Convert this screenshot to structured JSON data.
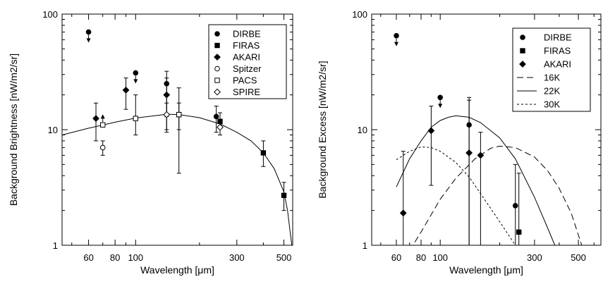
{
  "chart_data": [
    {
      "type": "scatter",
      "xscale": "log",
      "yscale": "log",
      "xlim": [
        45,
        550
      ],
      "ylim": [
        1,
        100
      ],
      "xlabel": "Wavelength [μm]",
      "ylabel": "Background Brightness [nW/m2/sr]",
      "xticks": [
        60,
        80,
        100,
        300,
        500
      ],
      "xtick_labels": [
        "60",
        "80",
        "100",
        "300",
        "500"
      ],
      "yticks": [
        1,
        10,
        100
      ],
      "ytick_labels": [
        "1",
        "10",
        "100"
      ],
      "legend": [
        {
          "label": "DIRBE",
          "marker": "circle-filled"
        },
        {
          "label": "FIRAS",
          "marker": "square-filled"
        },
        {
          "label": "AKARI",
          "marker": "diamond-filled"
        },
        {
          "label": "Spitzer",
          "marker": "circle-open"
        },
        {
          "label": "PACS",
          "marker": "square-open"
        },
        {
          "label": "SPIRE",
          "marker": "diamond-open"
        }
      ],
      "series": [
        {
          "name": "DIRBE",
          "marker": "circle-filled",
          "points": [
            {
              "x": 60,
              "y": 70,
              "upper_limit": true
            },
            {
              "x": 100,
              "y": 31,
              "upper_limit": true
            },
            {
              "x": 140,
              "y": 25,
              "lo": 10,
              "hi": 32
            },
            {
              "x": 240,
              "y": 13,
              "lo": 9.5,
              "hi": 16
            }
          ]
        },
        {
          "name": "FIRAS",
          "marker": "square-filled",
          "points": [
            {
              "x": 160,
              "y": 13.5,
              "lo": 4.2,
              "hi": 23
            },
            {
              "x": 250,
              "y": 11.8,
              "lo": 9,
              "hi": 14
            },
            {
              "x": 400,
              "y": 6.3,
              "lo": 4.8,
              "hi": 8
            },
            {
              "x": 500,
              "y": 2.7,
              "lo": 2,
              "hi": 3.5
            }
          ]
        },
        {
          "name": "AKARI",
          "marker": "diamond-filled",
          "points": [
            {
              "x": 65,
              "y": 12.5,
              "lo": 8,
              "hi": 17
            },
            {
              "x": 90,
              "y": 22,
              "lo": 15,
              "hi": 28
            },
            {
              "x": 140,
              "y": 20,
              "lo": 13,
              "hi": 28
            }
          ]
        },
        {
          "name": "Spitzer",
          "marker": "circle-open",
          "points": [
            {
              "x": 70,
              "y": 7,
              "lo": 6,
              "hi": 8
            }
          ]
        },
        {
          "name": "PACS",
          "marker": "square-open",
          "points": [
            {
              "x": 70,
              "y": 11,
              "lower_limit": true
            },
            {
              "x": 100,
              "y": 12.5,
              "lo": 9,
              "hi": 20
            },
            {
              "x": 160,
              "y": 13.5,
              "lo": 10,
              "hi": 17
            }
          ]
        },
        {
          "name": "SPIRE",
          "marker": "diamond-open",
          "points": [
            {
              "x": 140,
              "y": 13.5,
              "lo": 9.5,
              "hi": 17
            },
            {
              "x": 250,
              "y": 10.5,
              "lo": 9,
              "hi": 12
            }
          ]
        }
      ],
      "model_curves": [
        {
          "name": "fit",
          "style": "solid",
          "points": [
            [
              45,
              9
            ],
            [
              60,
              10.3
            ],
            [
              80,
              11.6
            ],
            [
              100,
              12.6
            ],
            [
              140,
              13.6
            ],
            [
              160,
              13.5
            ],
            [
              200,
              12.7
            ],
            [
              250,
              11.2
            ],
            [
              300,
              9.5
            ],
            [
              350,
              8
            ],
            [
              400,
              6.3
            ],
            [
              450,
              4.6
            ],
            [
              500,
              2.9
            ],
            [
              520,
              2
            ],
            [
              535,
              1.3
            ],
            [
              545,
              1
            ]
          ]
        }
      ]
    },
    {
      "type": "scatter",
      "xscale": "log",
      "yscale": "log",
      "xlim": [
        45,
        650
      ],
      "ylim": [
        1,
        100
      ],
      "xlabel": "Wavelength [μm]",
      "ylabel": "Background Excess [nW/m2/sr]",
      "xticks": [
        60,
        80,
        100,
        300,
        500
      ],
      "xtick_labels": [
        "60",
        "80",
        "100",
        "300",
        "500"
      ],
      "yticks": [
        1,
        10,
        100
      ],
      "ytick_labels": [
        "1",
        "10",
        "100"
      ],
      "legend": [
        {
          "label": "DIRBE",
          "marker": "circle-filled"
        },
        {
          "label": "FIRAS",
          "marker": "square-filled"
        },
        {
          "label": "AKARI",
          "marker": "diamond-filled"
        },
        {
          "label": "16K",
          "line": "long-dash"
        },
        {
          "label": "22K",
          "line": "solid"
        },
        {
          "label": "30K",
          "line": "short-dash"
        }
      ],
      "series": [
        {
          "name": "DIRBE",
          "marker": "circle-filled",
          "points": [
            {
              "x": 60,
              "y": 65,
              "upper_limit": true
            },
            {
              "x": 100,
              "y": 19,
              "upper_limit": true
            },
            {
              "x": 140,
              "y": 11,
              "lo": 1,
              "hi": 18
            },
            {
              "x": 240,
              "y": 2.2,
              "lo": 1,
              "hi": 5
            }
          ]
        },
        {
          "name": "FIRAS",
          "marker": "square-filled",
          "points": [
            {
              "x": 250,
              "y": 1.3,
              "lo": 1,
              "hi": 4.2
            }
          ]
        },
        {
          "name": "AKARI",
          "marker": "diamond-filled",
          "points": [
            {
              "x": 65,
              "y": 1.9,
              "lo": 1,
              "hi": 6.5
            },
            {
              "x": 90,
              "y": 9.8,
              "lo": 3.3,
              "hi": 16
            },
            {
              "x": 140,
              "y": 6.3,
              "lo": 1,
              "hi": 19
            },
            {
              "x": 160,
              "y": 6,
              "lo": 1,
              "hi": 9.5
            }
          ]
        }
      ],
      "model_curves": [
        {
          "name": "16K",
          "style": "long-dash",
          "points": [
            [
              70,
              0.9
            ],
            [
              80,
              1.3
            ],
            [
              100,
              2.5
            ],
            [
              120,
              3.8
            ],
            [
              150,
              5.6
            ],
            [
              180,
              6.9
            ],
            [
              200,
              7.2
            ],
            [
              240,
              7.0
            ],
            [
              300,
              5.8
            ],
            [
              350,
              4.4
            ],
            [
              400,
              3.1
            ],
            [
              460,
              1.9
            ],
            [
              520,
              1.0
            ]
          ]
        },
        {
          "name": "22K",
          "style": "solid",
          "points": [
            [
              60,
              3.2
            ],
            [
              70,
              5.6
            ],
            [
              80,
              8
            ],
            [
              90,
              10.5
            ],
            [
              100,
              12
            ],
            [
              110,
              12.8
            ],
            [
              120,
              13.2
            ],
            [
              140,
              12.8
            ],
            [
              160,
              11.5
            ],
            [
              200,
              8.5
            ],
            [
              240,
              5.6
            ],
            [
              300,
              2.6
            ],
            [
              350,
              1.4
            ],
            [
              380,
              1.0
            ]
          ]
        },
        {
          "name": "30K",
          "style": "short-dash",
          "points": [
            [
              60,
              5.5
            ],
            [
              70,
              6.5
            ],
            [
              80,
              7.1
            ],
            [
              90,
              7.0
            ],
            [
              100,
              6.5
            ],
            [
              120,
              5.2
            ],
            [
              140,
              3.9
            ],
            [
              160,
              2.8
            ],
            [
              200,
              1.6
            ],
            [
              240,
              1.0
            ]
          ]
        }
      ]
    }
  ]
}
